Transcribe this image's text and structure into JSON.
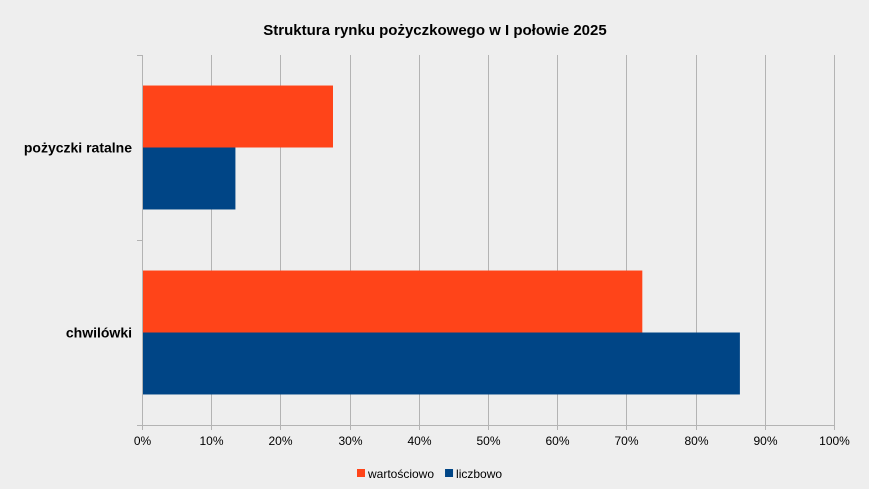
{
  "chart_data": {
    "type": "bar",
    "orientation": "horizontal",
    "title": "Struktura rynku pożyczkowego w I połowie 2025",
    "categories": [
      "pożyczki ratalne",
      "chwilówki"
    ],
    "series": [
      {
        "name": "wartościowo",
        "values": [
          27.6,
          72.3
        ],
        "color": "#ff4419"
      },
      {
        "name": "liczbowo",
        "values": [
          13.5,
          86.4
        ],
        "color": "#004586"
      }
    ],
    "xlim": [
      0,
      100
    ],
    "xticks": [
      "0%",
      "10%",
      "20%",
      "30%",
      "40%",
      "50%",
      "60%",
      "70%",
      "80%",
      "90%",
      "100%"
    ],
    "grid": true,
    "legend": "bottom",
    "background": "#eeeeee"
  }
}
